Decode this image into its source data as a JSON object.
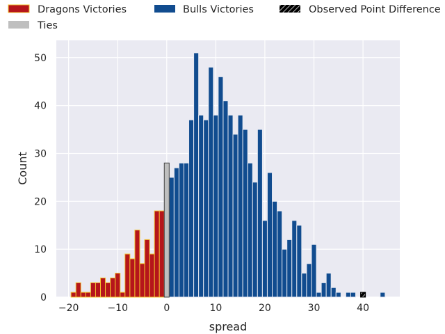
{
  "chart_data": {
    "type": "bar",
    "title": "",
    "xlabel": "spread",
    "ylabel": "Count",
    "xlim": [
      -22.5,
      47.5
    ],
    "ylim": [
      0,
      53.6
    ],
    "xticks": [
      -20,
      -10,
      0,
      10,
      20,
      30,
      40
    ],
    "yticks": [
      0,
      10,
      20,
      30,
      40,
      50
    ],
    "grid": true,
    "legend_placement": "top",
    "series": [
      {
        "name": "Dragons Victories",
        "color": "#b5151b",
        "edge": "#f2c12e",
        "x": [
          -19,
          -18,
          -17,
          -16,
          -15,
          -14,
          -13,
          -12,
          -11,
          -10,
          -9,
          -8,
          -7,
          -6,
          -5,
          -4,
          -3,
          -2,
          -1
        ],
        "values": [
          1,
          3,
          1,
          1,
          3,
          3,
          4,
          3,
          4,
          5,
          1,
          9,
          8,
          14,
          7,
          12,
          9,
          18,
          18
        ]
      },
      {
        "name": "Bulls Victories",
        "color": "#114c8f",
        "edge": "#e6e9f2",
        "x": [
          1,
          2,
          3,
          4,
          5,
          6,
          7,
          8,
          9,
          10,
          11,
          12,
          13,
          14,
          15,
          16,
          17,
          18,
          19,
          20,
          21,
          22,
          23,
          24,
          25,
          26,
          27,
          28,
          29,
          30,
          31,
          32,
          33,
          34,
          35,
          37,
          38,
          44
        ],
        "values": [
          25,
          27,
          28,
          28,
          37,
          51,
          38,
          37,
          48,
          38,
          46,
          41,
          38,
          34,
          38,
          35,
          28,
          24,
          35,
          16,
          26,
          20,
          18,
          10,
          12,
          16,
          15,
          5,
          7,
          11,
          1,
          3,
          5,
          2,
          1,
          1,
          1,
          1
        ]
      },
      {
        "name": "Ties",
        "color": "#bfbfbf",
        "edge": "#444444",
        "x": [
          0
        ],
        "values": [
          28
        ]
      },
      {
        "name": "Observed Point Difference",
        "color": "#000000",
        "edge": "#000000",
        "hatch": true,
        "x": [
          40
        ],
        "values": [
          1
        ]
      }
    ]
  }
}
